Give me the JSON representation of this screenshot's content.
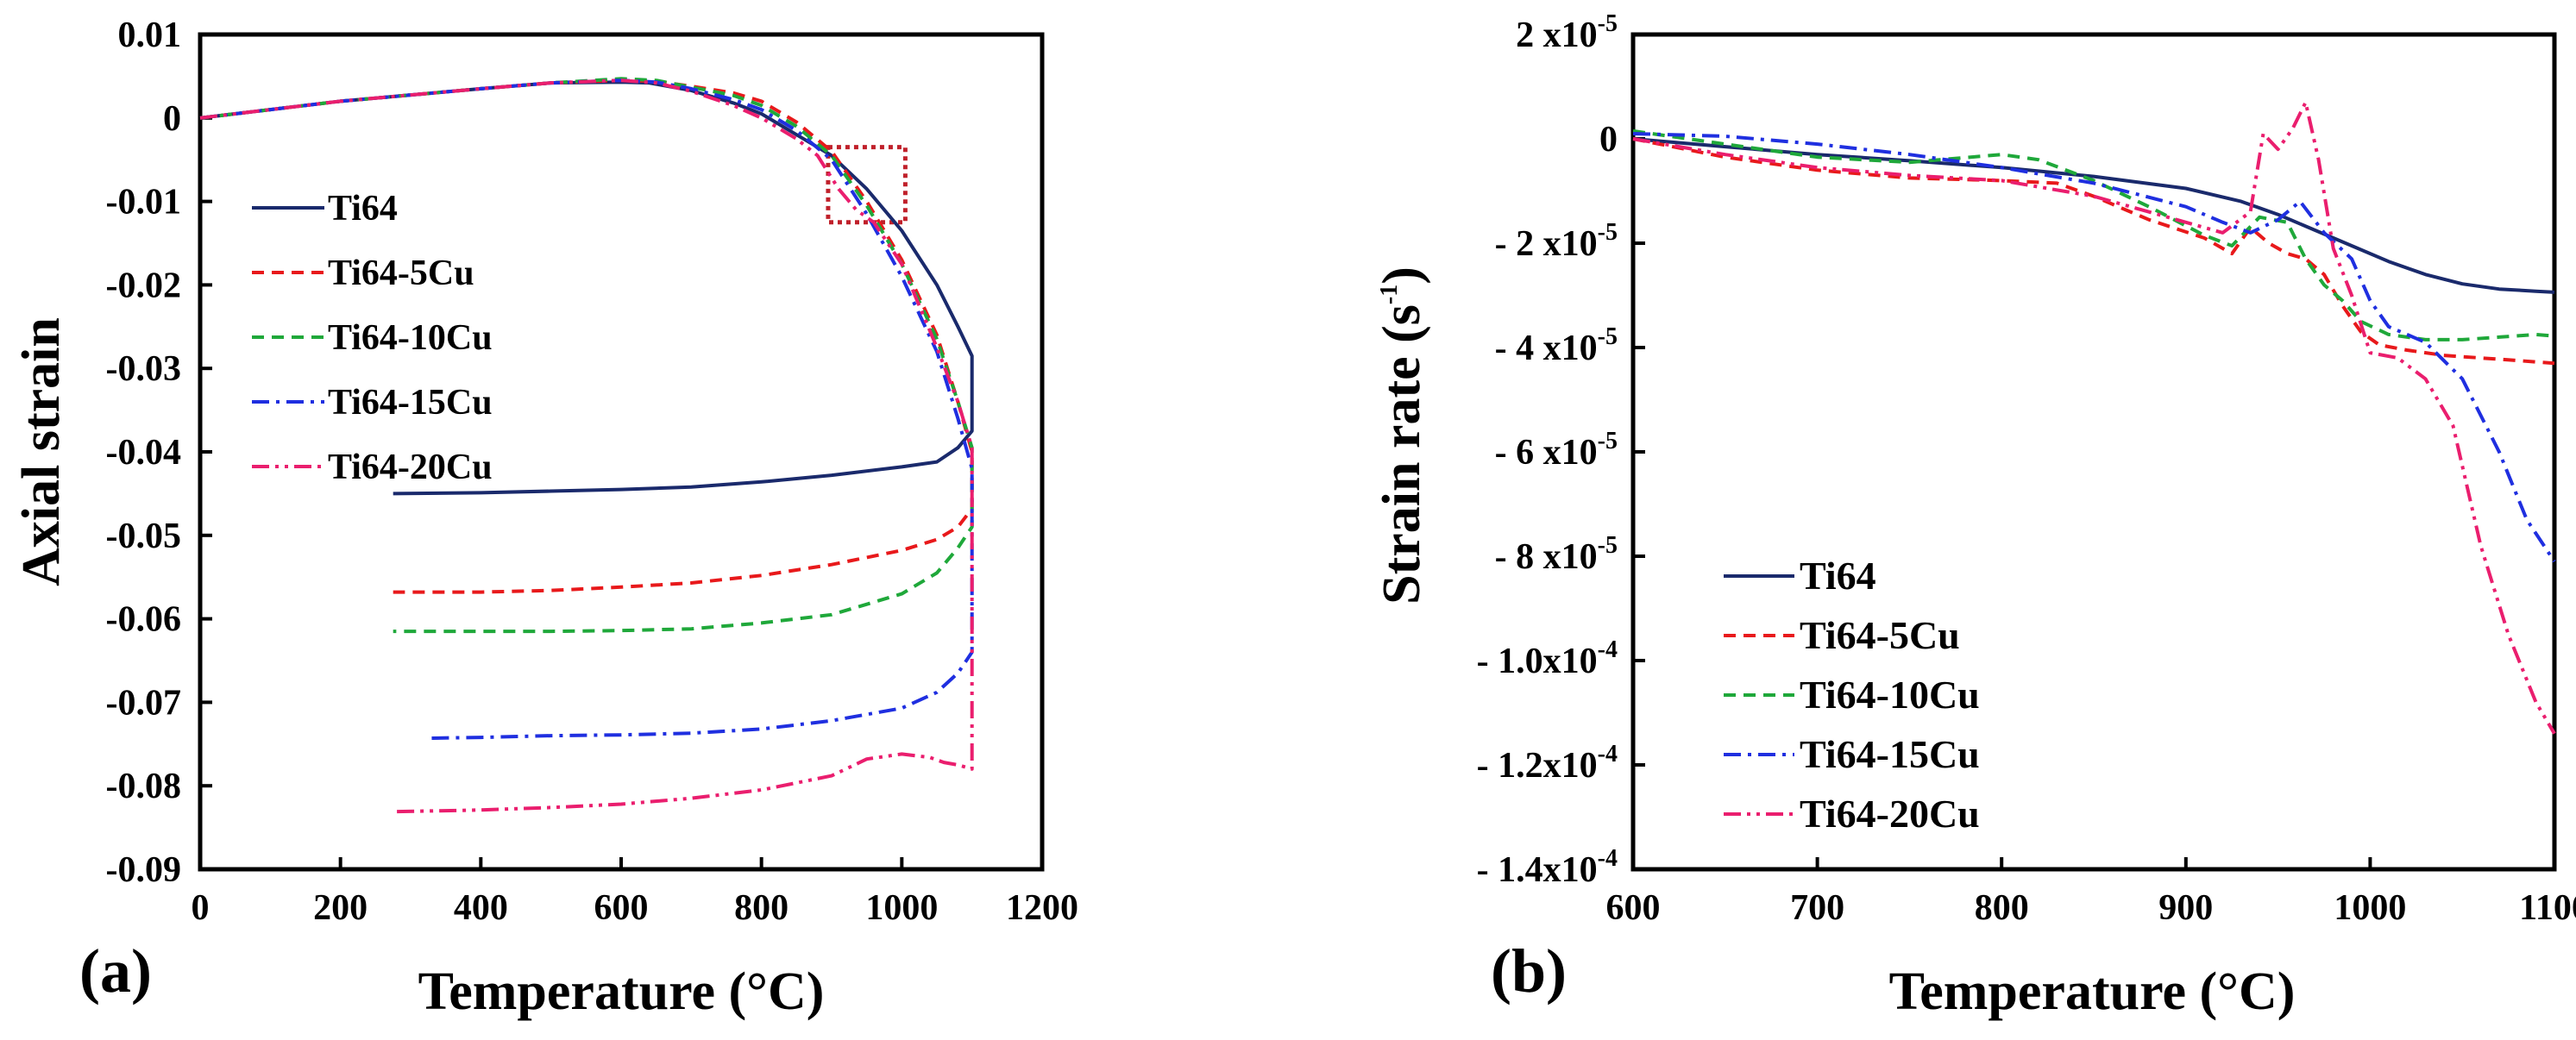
{
  "chart_data": [
    {
      "type": "line",
      "panel_label": "(a)",
      "xlabel": "Temperature (°C)",
      "ylabel": "Axial strain",
      "xlim": [
        0,
        1200
      ],
      "ylim": [
        -0.09,
        0.01
      ],
      "xticks": [
        "0",
        "200",
        "400",
        "600",
        "800",
        "1000",
        "1200"
      ],
      "yticks": [
        "0.01",
        "0",
        "-0.01",
        "-0.02",
        "-0.03",
        "-0.04",
        "-0.05",
        "-0.06",
        "-0.07",
        "-0.08",
        "-0.09"
      ],
      "legend_position": "left",
      "highlight_box": {
        "x": [
          895,
          1005
        ],
        "y": [
          -0.0125,
          -0.0035
        ],
        "color": "#c0202a"
      },
      "series": [
        {
          "name": "Ti64",
          "color": "#1a2a6c",
          "dash": "solid",
          "x": [
            0,
            200,
            400,
            500,
            600,
            640,
            700,
            760,
            800,
            850,
            900,
            950,
            1000,
            1050,
            1080,
            1100,
            1100,
            1080,
            1050,
            1000,
            900,
            800,
            700,
            600,
            500,
            400,
            275
          ],
          "y": [
            0,
            0.002,
            0.0035,
            0.0042,
            0.0043,
            0.0042,
            0.0033,
            0.0018,
            0.0005,
            -0.002,
            -0.0045,
            -0.0085,
            -0.0135,
            -0.02,
            -0.025,
            -0.0285,
            -0.0375,
            -0.0395,
            -0.0412,
            -0.0418,
            -0.0428,
            -0.0436,
            -0.0442,
            -0.0445,
            -0.0447,
            -0.0449,
            -0.045
          ]
        },
        {
          "name": "Ti64-5Cu",
          "color": "#e8191b",
          "dash": "dash",
          "x": [
            0,
            200,
            400,
            500,
            600,
            650,
            700,
            760,
            800,
            850,
            900,
            950,
            1000,
            1050,
            1080,
            1100,
            1100,
            1080,
            1050,
            1000,
            900,
            800,
            700,
            600,
            500,
            400,
            275
          ],
          "y": [
            0,
            0.002,
            0.0035,
            0.0042,
            0.0045,
            0.0044,
            0.0038,
            0.003,
            0.002,
            -0.0005,
            -0.004,
            -0.01,
            -0.017,
            -0.026,
            -0.034,
            -0.04,
            -0.0468,
            -0.049,
            -0.0505,
            -0.0518,
            -0.0535,
            -0.0548,
            -0.0557,
            -0.0562,
            -0.0566,
            -0.0568,
            -0.0568
          ]
        },
        {
          "name": "Ti64-10Cu",
          "color": "#1fa83a",
          "dash": "dash",
          "x": [
            0,
            200,
            400,
            500,
            600,
            650,
            700,
            760,
            800,
            850,
            900,
            950,
            1000,
            1050,
            1080,
            1100,
            1100,
            1080,
            1050,
            1000,
            900,
            800,
            700,
            600,
            500,
            400,
            275
          ],
          "y": [
            0,
            0.002,
            0.0035,
            0.0042,
            0.0047,
            0.0045,
            0.0037,
            0.0027,
            0.0015,
            -0.001,
            -0.0045,
            -0.0105,
            -0.0175,
            -0.0265,
            -0.034,
            -0.0395,
            -0.049,
            -0.0515,
            -0.0545,
            -0.057,
            -0.0595,
            -0.0605,
            -0.0612,
            -0.0614,
            -0.0615,
            -0.0615,
            -0.0615
          ]
        },
        {
          "name": "Ti64-15Cu",
          "color": "#1f2fe0",
          "dash": "dashdot",
          "x": [
            0,
            200,
            400,
            500,
            600,
            650,
            700,
            760,
            800,
            850,
            900,
            950,
            1000,
            1050,
            1080,
            1100,
            1100,
            1080,
            1050,
            1000,
            900,
            800,
            700,
            600,
            500,
            400,
            330
          ],
          "y": [
            0,
            0.002,
            0.0035,
            0.0042,
            0.0045,
            0.0043,
            0.0035,
            0.0022,
            0.001,
            -0.0015,
            -0.005,
            -0.0115,
            -0.019,
            -0.028,
            -0.036,
            -0.042,
            -0.064,
            -0.0665,
            -0.0688,
            -0.0707,
            -0.0722,
            -0.0732,
            -0.0737,
            -0.0739,
            -0.074,
            -0.0742,
            -0.0743
          ]
        },
        {
          "name": "Ti64-20Cu",
          "color": "#ea1e6e",
          "dash": "dashdotdot",
          "x": [
            0,
            200,
            400,
            500,
            600,
            650,
            700,
            760,
            800,
            850,
            880,
            910,
            935,
            960,
            1000,
            1050,
            1080,
            1100,
            1100,
            1080,
            1060,
            1040,
            1000,
            950,
            900,
            800,
            700,
            600,
            500,
            400,
            275
          ],
          "y": [
            0,
            0.002,
            0.0035,
            0.0042,
            0.0045,
            0.0042,
            0.0032,
            0.0015,
            0.0,
            -0.0025,
            -0.0045,
            -0.0085,
            -0.011,
            -0.0125,
            -0.0175,
            -0.0275,
            -0.034,
            -0.0395,
            -0.078,
            -0.0775,
            -0.0772,
            -0.0766,
            -0.0762,
            -0.0768,
            -0.0788,
            -0.0805,
            -0.0815,
            -0.0822,
            -0.0826,
            -0.0829,
            -0.0831
          ]
        }
      ]
    },
    {
      "type": "line",
      "panel_label": "(b)",
      "xlabel": "Temperature (°C)",
      "ylabel": "Strain rate (s⁻¹)",
      "ylabel_main": "Strain rate (s",
      "ylabel_sup": "-1",
      "ylabel_close": ")",
      "xlim": [
        600,
        1100
      ],
      "ylim": [
        -0.00014,
        2e-05
      ],
      "xticks": [
        "600",
        "700",
        "800",
        "900",
        "1000",
        "1100"
      ],
      "ytick_labels": [
        {
          "mant": "2 x10",
          "exp": "-5"
        },
        {
          "mant": "0",
          "exp": ""
        },
        {
          "mant": "- 2 x10",
          "exp": "-5"
        },
        {
          "mant": "- 4 x10",
          "exp": "-5"
        },
        {
          "mant": "- 6 x10",
          "exp": "-5"
        },
        {
          "mant": "- 8 x10",
          "exp": "-5"
        },
        {
          "mant": "- 1.0x10",
          "exp": "-4"
        },
        {
          "mant": "- 1.2x10",
          "exp": "-4"
        },
        {
          "mant": "- 1.4x10",
          "exp": "-4"
        }
      ],
      "legend_position": "bottom-left",
      "series": [
        {
          "name": "Ti64",
          "color": "#1a2a6c",
          "dash": "solid",
          "x": [
            600,
            650,
            700,
            750,
            800,
            850,
            900,
            930,
            950,
            970,
            990,
            1010,
            1030,
            1050,
            1070,
            1090,
            1100
          ],
          "y": [
            0,
            -0.15,
            -0.3,
            -0.42,
            -0.55,
            -0.72,
            -0.95,
            -1.2,
            -1.45,
            -1.75,
            -2.05,
            -2.35,
            -2.6,
            -2.78,
            -2.88,
            -2.92,
            -2.94
          ]
        },
        {
          "name": "Ti64-5Cu",
          "color": "#e8191b",
          "dash": "dash",
          "x": [
            600,
            650,
            700,
            750,
            800,
            830,
            850,
            880,
            910,
            925,
            935,
            945,
            955,
            965,
            975,
            985,
            995,
            1005,
            1020,
            1040,
            1060,
            1080,
            1100
          ],
          "y": [
            0,
            -0.35,
            -0.6,
            -0.75,
            -0.8,
            -0.85,
            -1.1,
            -1.55,
            -1.9,
            -2.2,
            -1.7,
            -2.0,
            -2.2,
            -2.3,
            -2.6,
            -3.2,
            -3.7,
            -3.95,
            -4.05,
            -4.15,
            -4.2,
            -4.25,
            -4.3
          ]
        },
        {
          "name": "Ti64-10Cu",
          "color": "#1fa83a",
          "dash": "dash",
          "x": [
            600,
            650,
            700,
            750,
            800,
            820,
            850,
            880,
            910,
            925,
            940,
            955,
            965,
            975,
            985,
            995,
            1010,
            1030,
            1050,
            1070,
            1090,
            1100
          ],
          "y": [
            0.15,
            -0.1,
            -0.35,
            -0.45,
            -0.3,
            -0.4,
            -0.8,
            -1.3,
            -1.85,
            -2.05,
            -1.5,
            -1.6,
            -2.3,
            -2.8,
            -3.1,
            -3.5,
            -3.75,
            -3.85,
            -3.85,
            -3.8,
            -3.75,
            -3.78
          ]
        },
        {
          "name": "Ti64-15Cu",
          "color": "#1f2fe0",
          "dash": "dashdot",
          "x": [
            600,
            650,
            700,
            750,
            800,
            850,
            900,
            920,
            935,
            950,
            962,
            975,
            990,
            1000,
            1010,
            1030,
            1050,
            1070,
            1085,
            1100
          ],
          "y": [
            0.1,
            0.05,
            -0.1,
            -0.3,
            -0.55,
            -0.85,
            -1.3,
            -1.6,
            -1.8,
            -1.55,
            -1.2,
            -1.8,
            -2.3,
            -3.1,
            -3.6,
            -3.9,
            -4.6,
            -6.0,
            -7.3,
            -8.1
          ]
        },
        {
          "name": "Ti64-20Cu",
          "color": "#ea1e6e",
          "dash": "dashdotdot",
          "x": [
            600,
            650,
            700,
            750,
            800,
            850,
            900,
            920,
            935,
            942,
            950,
            958,
            965,
            972,
            980,
            990,
            1000,
            1015,
            1030,
            1045,
            1060,
            1075,
            1090,
            1100
          ],
          "y": [
            0,
            -0.3,
            -0.55,
            -0.7,
            -0.8,
            -1.1,
            -1.6,
            -1.8,
            -1.4,
            0.1,
            -0.2,
            0.2,
            0.7,
            -0.4,
            -2.1,
            -3.0,
            -4.1,
            -4.2,
            -4.6,
            -5.5,
            -7.8,
            -9.5,
            -10.8,
            -11.4
          ]
        }
      ]
    }
  ]
}
